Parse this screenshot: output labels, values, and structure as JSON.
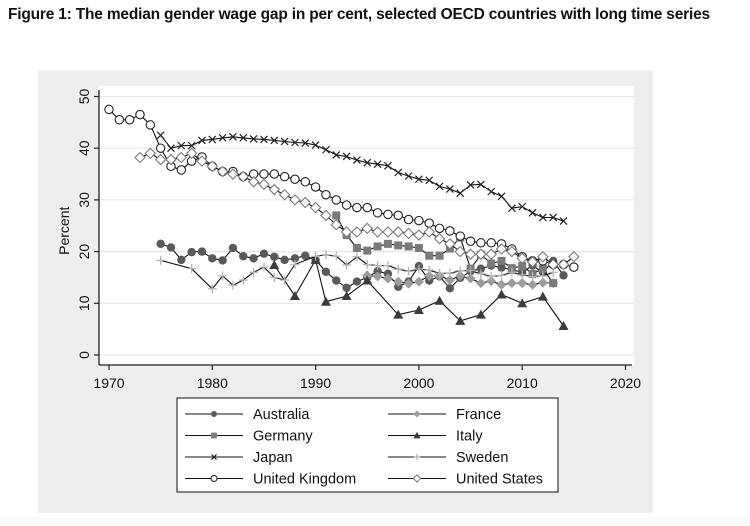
{
  "figure_title": "Figure 1: The median gender wage gap in per cent, selected OECD countries with long time series",
  "chart_data": {
    "type": "line",
    "title": "Figure 1: The median gender wage gap in per cent, selected OECD countries with long time series",
    "xlabel": "",
    "ylabel": "Percent",
    "xlim": [
      1969,
      2021
    ],
    "ylim": [
      -1.5,
      52
    ],
    "xticks": [
      1970,
      1980,
      1990,
      2000,
      2010,
      2020
    ],
    "yticks": [
      0,
      10,
      20,
      30,
      40,
      50
    ],
    "grid": true,
    "legend_position": "bottom",
    "series": [
      {
        "name": "Australia",
        "marker": "circle-filled",
        "color": "#5a5a5a",
        "x": [
          1975,
          1976,
          1977,
          1978,
          1979,
          1980,
          1981,
          1982,
          1983,
          1984,
          1985,
          1986,
          1987,
          1988,
          1989,
          1990,
          1991,
          1992,
          1993,
          1994,
          1995,
          1996,
          1997,
          1998,
          1999,
          2000,
          2001,
          2002,
          2003,
          2004,
          2005,
          2006,
          2007,
          2008,
          2009,
          2010,
          2011,
          2012,
          2013,
          2014
        ],
        "y": [
          21.5,
          20.8,
          18.4,
          19.9,
          20,
          18.7,
          18.3,
          20.7,
          19.1,
          18.7,
          19.6,
          19,
          18.4,
          18.7,
          19.2,
          18.4,
          16.1,
          14.4,
          13,
          14.2,
          15,
          16.2,
          15.7,
          13.2,
          14.2,
          17.2,
          14.4,
          15.2,
          12.9,
          14.9,
          16.2,
          16.7,
          17.3,
          16.9,
          16.5,
          16,
          17.3,
          16,
          18.2,
          15.4
        ]
      },
      {
        "name": "France",
        "marker": "diamond-filled",
        "color": "#9c9c9c",
        "x": [
          1995,
          1996,
          1997,
          1998,
          1999,
          2000,
          2001,
          2002,
          2003,
          2004,
          2005,
          2006,
          2007,
          2008,
          2009,
          2010,
          2011,
          2012,
          2013
        ],
        "y": [
          15.4,
          15.2,
          14.8,
          14.2,
          13.8,
          14.2,
          15.3,
          15.3,
          14.5,
          15.3,
          14.8,
          13.9,
          14.3,
          13.6,
          13.9,
          13.9,
          13.6,
          14,
          13.9
        ]
      },
      {
        "name": "Germany",
        "marker": "square-filled",
        "color": "#7a7a7a",
        "x": [
          1992,
          1993,
          1994,
          1995,
          1996,
          1997,
          1998,
          1999,
          2000,
          2001,
          2002,
          2003,
          2004,
          2005,
          2006,
          2007,
          2008,
          2009,
          2010,
          2011,
          2012,
          2013
        ],
        "y": [
          27,
          23.2,
          20.7,
          20.2,
          21,
          21.5,
          21.2,
          21,
          20.7,
          19.2,
          19.2,
          20.6,
          22.7,
          16.7,
          19.4,
          17.7,
          18.2,
          16.8,
          17.2,
          15.7,
          16.7,
          13.9
        ]
      },
      {
        "name": "Italy",
        "marker": "triangle-filled",
        "color": "#3c3c3c",
        "x": [
          1986,
          1988,
          1990,
          1991,
          1993,
          1995,
          1998,
          2000,
          2002,
          2004,
          2006,
          2008,
          2010,
          2012,
          2014
        ],
        "y": [
          17.4,
          11.4,
          18.4,
          10.3,
          11.4,
          14.4,
          7.8,
          8.7,
          10.5,
          6.6,
          7.8,
          11.7,
          10,
          11.3,
          5.6
        ]
      },
      {
        "name": "Japan",
        "marker": "x",
        "color": "#222222",
        "x": [
          1975,
          1976,
          1977,
          1978,
          1979,
          1980,
          1981,
          1982,
          1983,
          1984,
          1985,
          1986,
          1987,
          1988,
          1989,
          1990,
          1991,
          1992,
          1993,
          1994,
          1995,
          1996,
          1997,
          1998,
          1999,
          2000,
          2001,
          2002,
          2003,
          2004,
          2005,
          2006,
          2007,
          2008,
          2009,
          2010,
          2011,
          2012,
          2013,
          2014
        ],
        "y": [
          42.5,
          40,
          40.5,
          40.5,
          41.5,
          41.7,
          42,
          42.2,
          42,
          41.8,
          41.7,
          41.5,
          41.3,
          41.1,
          41,
          40.6,
          39.7,
          38.7,
          38.4,
          37.7,
          37.2,
          36.9,
          36.6,
          35.3,
          34.6,
          34,
          33.8,
          32.6,
          32.1,
          31.3,
          32.9,
          33,
          31.6,
          30.7,
          28.4,
          28.7,
          27.5,
          26.6,
          26.6,
          25.9
        ]
      },
      {
        "name": "Sweden",
        "marker": "plus",
        "color": "#b5b5b5",
        "x": [
          1975,
          1978,
          1980,
          1981,
          1982,
          1983,
          1984,
          1985,
          1986,
          1987,
          1988,
          1990,
          1991,
          1992,
          1993,
          1994,
          1995,
          1996,
          1997,
          1998,
          1999,
          2000,
          2001,
          2002,
          2003,
          2004,
          2005,
          2006,
          2007,
          2008,
          2009,
          2010,
          2011,
          2012,
          2013
        ],
        "y": [
          18.3,
          16.7,
          12.8,
          15.3,
          13.5,
          14.5,
          16,
          17,
          15,
          14.5,
          17.5,
          19.1,
          19.4,
          19.1,
          17.4,
          19,
          17.5,
          17.3,
          17.3,
          16.6,
          16.2,
          16.6,
          16.4,
          15.8,
          15.8,
          16.3,
          16.3,
          15.7,
          15.2,
          15.4,
          16,
          15.5,
          15.2,
          15.3,
          16
        ]
      },
      {
        "name": "United Kingdom",
        "marker": "circle-hollow",
        "color": "#222222",
        "x": [
          1970,
          1971,
          1972,
          1973,
          1974,
          1975,
          1976,
          1977,
          1978,
          1979,
          1980,
          1981,
          1982,
          1983,
          1984,
          1985,
          1986,
          1987,
          1988,
          1989,
          1990,
          1991,
          1992,
          1993,
          1994,
          1995,
          1996,
          1997,
          1998,
          1999,
          2000,
          2001,
          2002,
          2003,
          2004,
          2005,
          2006,
          2007,
          2008,
          2009,
          2010,
          2011,
          2012,
          2013,
          2014,
          2015
        ],
        "y": [
          47.5,
          45.5,
          45.5,
          46.5,
          44.5,
          40,
          36.5,
          35.8,
          37.5,
          38.3,
          36.5,
          35.5,
          35.5,
          34.5,
          35,
          35,
          35,
          34.5,
          34,
          33.5,
          32.5,
          31,
          30,
          29,
          28.5,
          28.5,
          27.5,
          27.2,
          27,
          26.2,
          26,
          25.5,
          24.5,
          24,
          23,
          22,
          21.7,
          21.7,
          21.5,
          20.5,
          19,
          18.2,
          18.2,
          17.5,
          17.5,
          17
        ]
      },
      {
        "name": "United States",
        "marker": "diamond-hollow",
        "color": "#7a7a7a",
        "x": [
          1973,
          1974,
          1975,
          1976,
          1977,
          1978,
          1979,
          1980,
          1981,
          1982,
          1983,
          1984,
          1985,
          1986,
          1987,
          1988,
          1989,
          1990,
          1991,
          1992,
          1993,
          1994,
          1995,
          1996,
          1997,
          1998,
          1999,
          2000,
          2001,
          2002,
          2003,
          2004,
          2005,
          2006,
          2007,
          2008,
          2009,
          2010,
          2011,
          2012,
          2013,
          2014,
          2015
        ],
        "y": [
          38.2,
          39,
          37.8,
          37.8,
          38.2,
          39,
          37.5,
          36.5,
          35.5,
          35,
          34.5,
          33.5,
          33,
          32,
          31,
          30,
          29.5,
          28.5,
          27,
          25.2,
          23.8,
          23.8,
          24.5,
          23.8,
          23.8,
          23.8,
          23.5,
          23.2,
          23.8,
          22.5,
          21.5,
          20,
          19.5,
          19.5,
          19.5,
          20.5,
          20,
          18.7,
          18,
          19,
          17.5,
          17.5,
          19
        ]
      }
    ]
  }
}
